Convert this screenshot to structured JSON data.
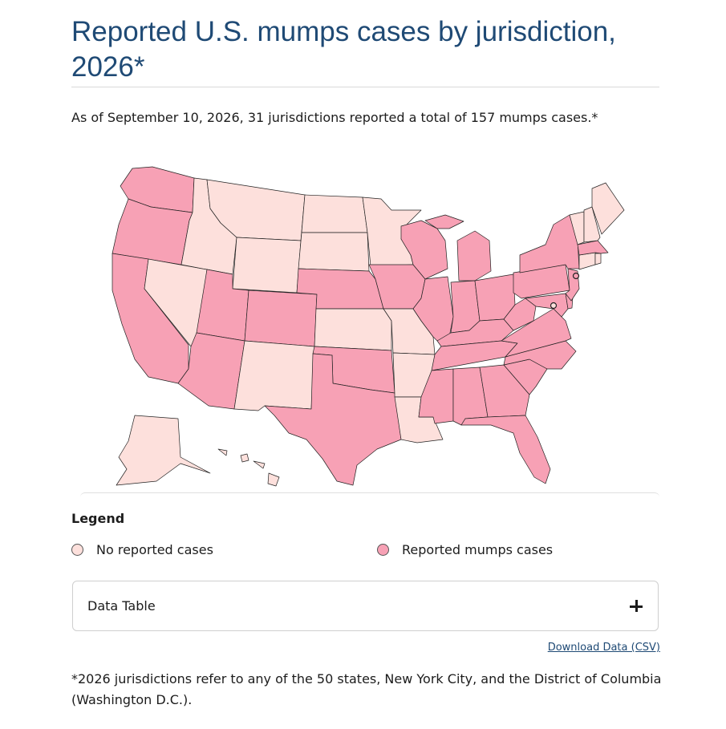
{
  "title": "Reported U.S. mumps cases by jurisdiction, 2026*",
  "summary": "As of September 10, 2026, 31 jurisdictions reported a total of 157 mumps cases.*",
  "colors": {
    "no_cases": "#fde0dc",
    "reported": "#f7a1b5",
    "title": "#1f4a75"
  },
  "map": {
    "reported": [
      "WA",
      "OR",
      "CA",
      "AZ",
      "UT",
      "CO",
      "NE",
      "IA",
      "TX",
      "OK",
      "WI",
      "MI",
      "IL",
      "IN",
      "OH",
      "KY",
      "TN",
      "MS",
      "AL",
      "GA",
      "FL",
      "SC",
      "NC",
      "VA",
      "WV",
      "PA",
      "NY",
      "NJ",
      "MD",
      "MA",
      "DE"
    ],
    "no_cases": [
      "ID",
      "MT",
      "WY",
      "NV",
      "NM",
      "ND",
      "SD",
      "KS",
      "MN",
      "MO",
      "AR",
      "LA",
      "ME",
      "NH",
      "VT",
      "RI",
      "CT",
      "AK",
      "HI"
    ],
    "city_markers": [
      "New York City",
      "District of Columbia"
    ]
  },
  "legend": {
    "title": "Legend",
    "items": [
      {
        "label": "No reported cases",
        "color": "#fde0dc"
      },
      {
        "label": "Reported mumps cases",
        "color": "#f7a1b5"
      }
    ]
  },
  "data_table": {
    "label": "Data Table",
    "icon": "plus-icon"
  },
  "download": "Download Data (CSV)",
  "footnote": "*2026 jurisdictions refer to any of the 50 states, New York City, and the District of Columbia (Washington D.C.)."
}
